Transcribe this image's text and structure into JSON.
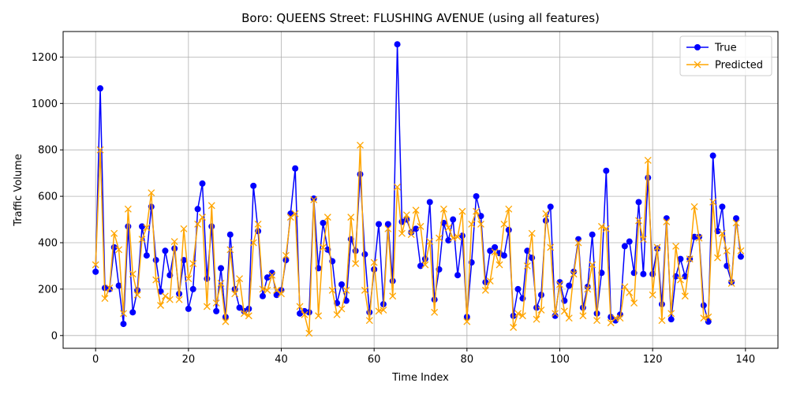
{
  "chart_data": {
    "type": "line",
    "title": "Boro: QUEENS Street: FLUSHING AVENUE (using all features)",
    "xlabel": "Time Index",
    "ylabel": "Traffic Volume",
    "xlim": [
      -7,
      147
    ],
    "ylim": [
      -55,
      1310
    ],
    "xticks": [
      0,
      20,
      40,
      60,
      80,
      100,
      120,
      140
    ],
    "yticks": [
      0,
      200,
      400,
      600,
      800,
      1000,
      1200
    ],
    "grid": true,
    "legend_position": "top-right",
    "series": [
      {
        "name": "True",
        "color": "#0000ff",
        "marker": "circle",
        "values": [
          275,
          1065,
          205,
          200,
          380,
          215,
          50,
          470,
          100,
          195,
          470,
          345,
          555,
          325,
          190,
          365,
          260,
          375,
          180,
          325,
          115,
          200,
          545,
          655,
          245,
          470,
          105,
          290,
          80,
          435,
          200,
          120,
          105,
          115,
          645,
          450,
          170,
          250,
          270,
          175,
          195,
          325,
          525,
          720,
          95,
          105,
          100,
          590,
          290,
          485,
          370,
          320,
          140,
          220,
          150,
          415,
          365,
          695,
          350,
          100,
          285,
          480,
          135,
          480,
          235,
          1255,
          490,
          500,
          445,
          460,
          300,
          330,
          575,
          155,
          285,
          485,
          410,
          500,
          260,
          430,
          80,
          315,
          600,
          515,
          230,
          365,
          380,
          355,
          345,
          455,
          85,
          200,
          160,
          365,
          335,
          120,
          175,
          495,
          555,
          85,
          230,
          150,
          215,
          275,
          415,
          120,
          210,
          435,
          95,
          270,
          710,
          80,
          65,
          90,
          385,
          405,
          270,
          575,
          265,
          680,
          265,
          375,
          135,
          505,
          70,
          255,
          330,
          255,
          330,
          425,
          425,
          130,
          60,
          775,
          450,
          555,
          300,
          230,
          505,
          340
        ]
      },
      {
        "name": "Predicted",
        "color": "#ffa500",
        "marker": "x",
        "values": [
          305,
          800,
          160,
          205,
          440,
          370,
          95,
          545,
          265,
          175,
          415,
          465,
          615,
          240,
          130,
          170,
          155,
          405,
          155,
          460,
          245,
          310,
          480,
          510,
          125,
          560,
          140,
          225,
          60,
          370,
          180,
          245,
          95,
          85,
          400,
          480,
          200,
          195,
          260,
          195,
          180,
          345,
          510,
          525,
          125,
          90,
          10,
          585,
          85,
          380,
          510,
          195,
          90,
          115,
          195,
          510,
          310,
          820,
          195,
          65,
          315,
          105,
          110,
          460,
          170,
          640,
          440,
          520,
          435,
          540,
          470,
          305,
          405,
          100,
          420,
          545,
          465,
          420,
          425,
          535,
          60,
          480,
          535,
          480,
          195,
          235,
          360,
          305,
          480,
          545,
          35,
          95,
          85,
          300,
          440,
          70,
          110,
          525,
          380,
          95,
          220,
          105,
          75,
          265,
          400,
          85,
          200,
          305,
          65,
          470,
          460,
          55,
          75,
          75,
          210,
          185,
          140,
          495,
          415,
          755,
          175,
          380,
          65,
          490,
          95,
          385,
          240,
          170,
          330,
          555,
          420,
          75,
          80,
          575,
          335,
          440,
          365,
          225,
          485,
          365
        ]
      }
    ]
  }
}
